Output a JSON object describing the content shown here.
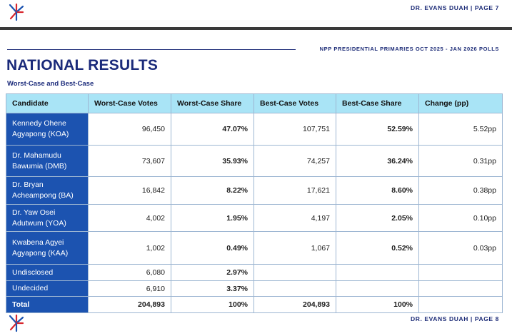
{
  "prev_page": {
    "footer": "DR. EVANS DUAH | PAGE 7"
  },
  "header": {
    "caption": "NPP PRESIDENTIAL PRIMARIES OCT 2025 - JAN 2026 POLLS",
    "title": "NATIONAL RESULTS",
    "subtitle": "Worst-Case and Best-Case"
  },
  "table": {
    "columns": [
      "Candidate",
      "Worst-Case Votes",
      "Worst-Case Share",
      "Best-Case Votes",
      "Best-Case Share",
      "Change (pp)"
    ],
    "rows": [
      {
        "candidate": "Kennedy Ohene Agyapong (KOA)",
        "worst_votes": "96,450",
        "worst_share": "47.07%",
        "best_votes": "107,751",
        "best_share": "52.59%",
        "change": "5.52pp"
      },
      {
        "candidate": "Dr. Mahamudu Bawumia (DMB)",
        "worst_votes": "73,607",
        "worst_share": "35.93%",
        "best_votes": "74,257",
        "best_share": "36.24%",
        "change": "0.31pp"
      },
      {
        "candidate": "Dr. Bryan Acheampong (BA)",
        "worst_votes": "16,842",
        "worst_share": "8.22%",
        "best_votes": "17,621",
        "best_share": "8.60%",
        "change": "0.38pp"
      },
      {
        "candidate": "Dr. Yaw Osei Adutwum (YOA)",
        "worst_votes": "4,002",
        "worst_share": "1.95%",
        "best_votes": "4,197",
        "best_share": "2.05%",
        "change": "0.10pp"
      },
      {
        "candidate": "Kwabena Agyei Agyapong (KAA)",
        "worst_votes": "1,002",
        "worst_share": "0.49%",
        "best_votes": "1,067",
        "best_share": "0.52%",
        "change": "0.03pp"
      },
      {
        "candidate": "Undisclosed",
        "worst_votes": "6,080",
        "worst_share": "2.97%",
        "best_votes": "",
        "best_share": "",
        "change": ""
      },
      {
        "candidate": "Undecided",
        "worst_votes": "6,910",
        "worst_share": "3.37%",
        "best_votes": "",
        "best_share": "",
        "change": ""
      },
      {
        "candidate": "Total",
        "worst_votes": "204,893",
        "worst_share": "100%",
        "best_votes": "204,893",
        "best_share": "100%",
        "change": ""
      }
    ]
  },
  "footer": {
    "text": "DR. EVANS DUAH | PAGE 8"
  },
  "colors": {
    "brand_navy": "#1a2a7a",
    "candidate_blue": "#1c53b0",
    "header_cyan": "#a9e4f6",
    "logo_red": "#d8262e",
    "logo_blue": "#1c53b0"
  },
  "icons": {
    "logo": "npp-brand-mark"
  }
}
